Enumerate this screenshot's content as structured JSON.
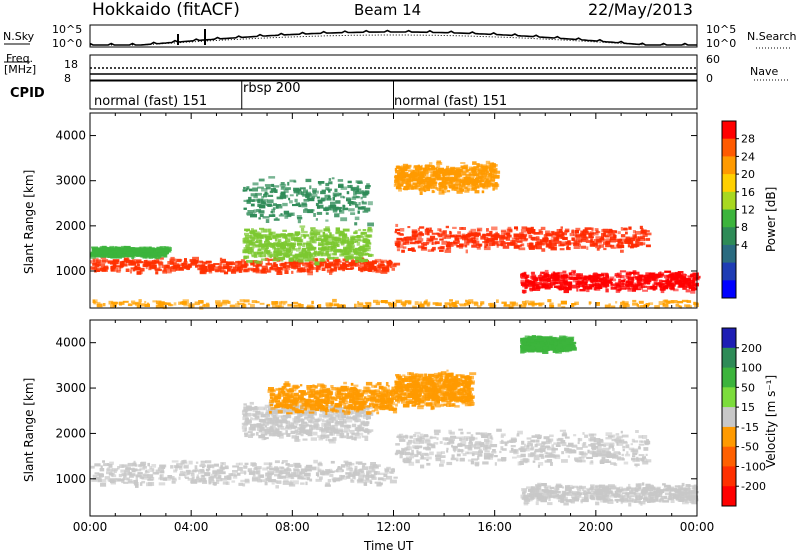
{
  "header": {
    "station": "Hokkaido (fitACF)",
    "beam": "Beam 14",
    "date": "22/May/2013"
  },
  "top_panels": {
    "nsky_label": "N.Sky",
    "nsearch_label": "N.Search",
    "noise_ticks_left": [
      "10^5",
      "10^0"
    ],
    "noise_ticks_right": [
      "10^5",
      "10^0"
    ],
    "freq_label": "Freq.",
    "freq_unit": "[MHz]",
    "freq_ticks": [
      "18",
      "8"
    ],
    "nave_label": "Nave",
    "nave_ticks": [
      "60",
      "0"
    ],
    "cpid_label": "CPID",
    "cpid_segments": [
      {
        "label": "normal (fast) 151",
        "start_h": 0,
        "end_h": 6
      },
      {
        "label": "rbsp 200",
        "start_h": 6,
        "end_h": 12
      },
      {
        "label": "normal (fast) 151",
        "start_h": 12,
        "end_h": 24
      }
    ]
  },
  "x_axis": {
    "label": "Time UT",
    "ticks": [
      "00:00",
      "04:00",
      "08:00",
      "12:00",
      "16:00",
      "20:00",
      "00:00"
    ]
  },
  "chart_data": [
    {
      "type": "heatmap",
      "title": "",
      "quantity": "Power",
      "ylabel": "Slant Range [km]",
      "xlabel": "Time UT",
      "xlim": [
        0,
        24
      ],
      "ylim": [
        180,
        4500
      ],
      "y_ticks": [
        1000,
        2000,
        3000,
        4000
      ],
      "colorbar": {
        "label": "Power [dB]",
        "ticks": [
          "28",
          "24",
          "20",
          "16",
          "12",
          "8",
          "4"
        ],
        "colors": [
          "#ff0000",
          "#ff5a00",
          "#ff9a00",
          "#ffd000",
          "#a8d820",
          "#3cb43c",
          "#2e8b57",
          "#2a6b80",
          "#1e3cb4",
          "#0000ff"
        ]
      },
      "bands": [
        {
          "t_start": 0,
          "t_end": 12,
          "range_center": 1150,
          "range_width": 300,
          "level": "strong",
          "color": "#ff3000"
        },
        {
          "t_start": 0,
          "t_end": 3,
          "range_center": 1450,
          "range_width": 200,
          "level": "moderate",
          "color": "#3cb43c"
        },
        {
          "t_start": 6,
          "t_end": 11,
          "range_center": 1600,
          "range_width": 700,
          "level": "moderate",
          "color": "#7cc830"
        },
        {
          "t_start": 6,
          "t_end": 11,
          "range_center": 2600,
          "range_width": 900,
          "level": "weak",
          "color": "#2e8b57"
        },
        {
          "t_start": 12,
          "t_end": 22,
          "range_center": 1750,
          "range_width": 500,
          "level": "strong",
          "color": "#ff2a00"
        },
        {
          "t_start": 12,
          "t_end": 16,
          "range_center": 3100,
          "range_width": 600,
          "level": "moderate",
          "color": "#ff9a00"
        },
        {
          "t_start": 17,
          "t_end": 24,
          "range_center": 800,
          "range_width": 400,
          "level": "strong",
          "color": "#ff0000"
        },
        {
          "t_start": 0,
          "t_end": 24,
          "range_center": 300,
          "range_width": 150,
          "level": "weak",
          "color": "#ffa000"
        }
      ]
    },
    {
      "type": "heatmap",
      "title": "",
      "quantity": "Velocity",
      "ylabel": "Slant Range [km]",
      "xlabel": "Time UT",
      "xlim": [
        0,
        24
      ],
      "ylim": [
        180,
        4500
      ],
      "y_ticks": [
        1000,
        2000,
        3000,
        4000
      ],
      "colorbar": {
        "label": "Velocity [m s⁻¹]",
        "ticks": [
          "200",
          "100",
          "50",
          "15",
          "-15",
          "-50",
          "-100",
          "-200"
        ],
        "colors": [
          "#1e1eb4",
          "#2e8b57",
          "#3cb43c",
          "#7cdc3c",
          "#c8c8c8",
          "#ff9a00",
          "#ff6000",
          "#ff3000",
          "#ff0000"
        ]
      },
      "bands": [
        {
          "t_start": 0,
          "t_end": 12,
          "range_center": 1150,
          "range_width": 500,
          "level": "ground",
          "color": "#c8c8c8"
        },
        {
          "t_start": 6,
          "t_end": 11,
          "range_center": 2300,
          "range_width": 800,
          "level": "ground",
          "color": "#c8c8c8"
        },
        {
          "t_start": 12,
          "t_end": 22,
          "range_center": 1700,
          "range_width": 700,
          "level": "ground",
          "color": "#c8c8c8"
        },
        {
          "t_start": 7,
          "t_end": 12,
          "range_center": 2800,
          "range_width": 600,
          "level": "negative",
          "color": "#ff9a00"
        },
        {
          "t_start": 12,
          "t_end": 15,
          "range_center": 3000,
          "range_width": 700,
          "level": "negative",
          "color": "#ff9a00"
        },
        {
          "t_start": 17,
          "t_end": 19,
          "range_center": 4000,
          "range_width": 300,
          "level": "positive",
          "color": "#3cb43c"
        },
        {
          "t_start": 17,
          "t_end": 24,
          "range_center": 700,
          "range_width": 400,
          "level": "ground",
          "color": "#c8c8c8"
        }
      ]
    }
  ]
}
